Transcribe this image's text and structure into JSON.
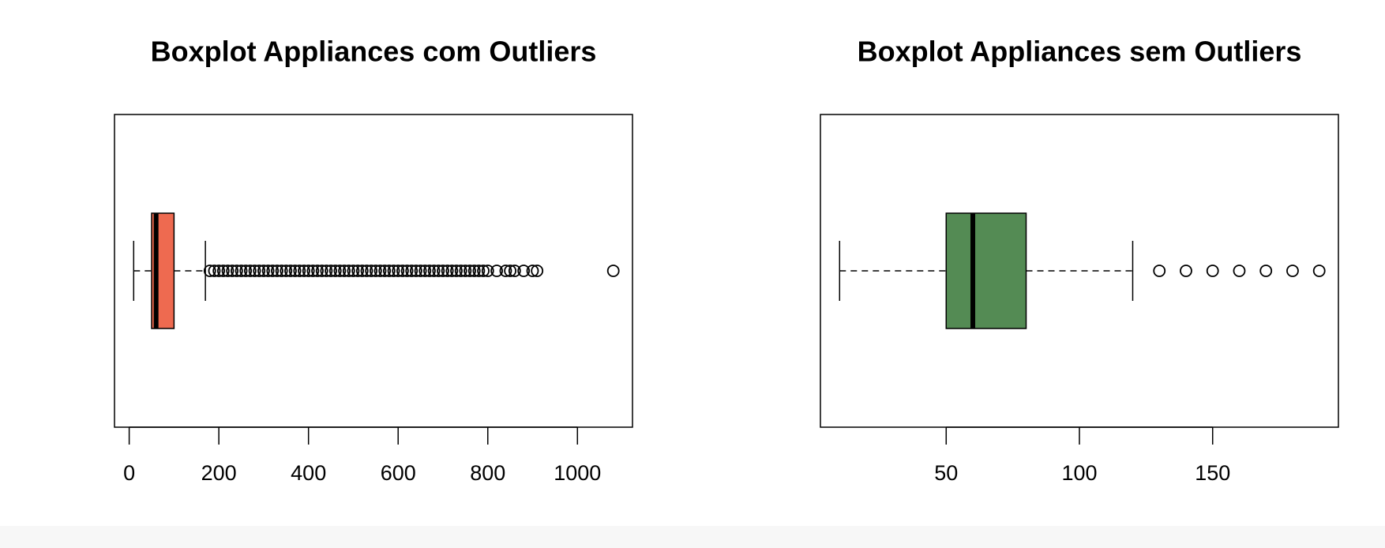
{
  "chart_data": [
    {
      "type": "boxplot",
      "title": "Boxplot Appliances com Outliers",
      "color": "#EE6A50",
      "min": 10,
      "q1": 50,
      "median": 60,
      "q3": 100,
      "max": 170,
      "outliers": [
        180,
        190,
        200,
        210,
        220,
        230,
        240,
        250,
        260,
        270,
        280,
        290,
        300,
        310,
        320,
        330,
        340,
        350,
        360,
        370,
        380,
        390,
        400,
        410,
        420,
        430,
        440,
        450,
        460,
        470,
        480,
        490,
        500,
        510,
        520,
        530,
        540,
        550,
        560,
        570,
        580,
        590,
        600,
        610,
        620,
        630,
        640,
        650,
        660,
        670,
        680,
        690,
        700,
        710,
        720,
        730,
        740,
        750,
        760,
        770,
        780,
        790,
        800,
        820,
        840,
        850,
        860,
        880,
        900,
        910,
        1080
      ],
      "xlim": [
        -32.8,
        1122.8
      ],
      "xticks": [
        0,
        200,
        400,
        600,
        800,
        1000
      ]
    },
    {
      "type": "boxplot",
      "title": "Boxplot Appliances sem Outliers",
      "color": "#548B54",
      "min": 10,
      "q1": 50,
      "median": 60,
      "q3": 80,
      "max": 120,
      "outliers": [
        130,
        140,
        150,
        160,
        170,
        180,
        190
      ],
      "xlim": [
        2.8,
        197.2
      ],
      "xticks": [
        50,
        100,
        150
      ]
    }
  ]
}
